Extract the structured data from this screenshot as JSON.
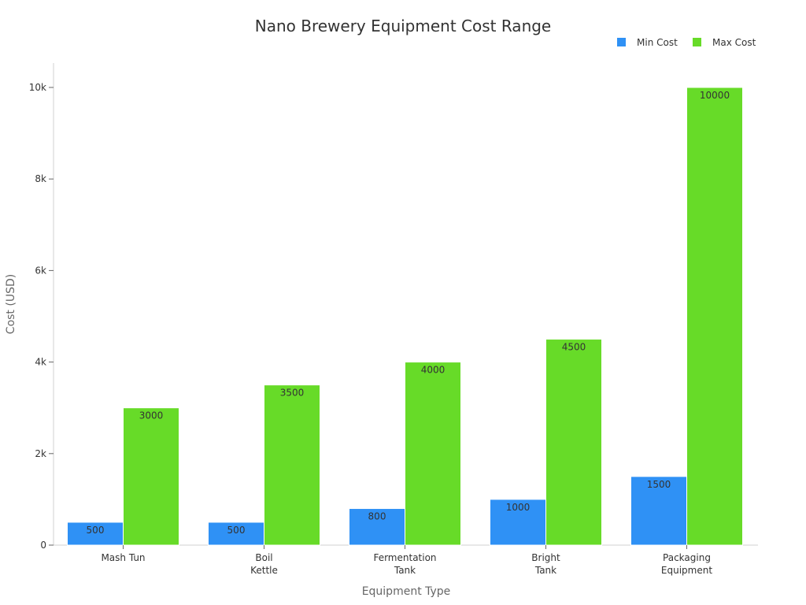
{
  "chart_data": {
    "type": "bar",
    "title": "Nano Brewery Equipment Cost Range",
    "xlabel": "Equipment Type",
    "ylabel": "Cost (USD)",
    "categories": [
      [
        "Mash Tun"
      ],
      [
        "Boil",
        "Kettle"
      ],
      [
        "Fermentation",
        "Tank"
      ],
      [
        "Bright",
        "Tank"
      ],
      [
        "Packaging",
        "Equipment"
      ]
    ],
    "series": [
      {
        "name": "Min Cost",
        "color": "#2f91f5",
        "values": [
          500,
          500,
          800,
          1000,
          1500
        ]
      },
      {
        "name": "Max Cost",
        "color": "#67db28",
        "values": [
          3000,
          3500,
          4000,
          4500,
          10000
        ]
      }
    ],
    "ylim": [
      0,
      10500
    ],
    "yticks": [
      0,
      2000,
      4000,
      6000,
      8000,
      10000
    ],
    "ytick_labels": [
      "0",
      "2k",
      "4k",
      "6k",
      "8k",
      "10k"
    ],
    "legend_position": "top-right",
    "grid": false,
    "data_labels": true
  }
}
